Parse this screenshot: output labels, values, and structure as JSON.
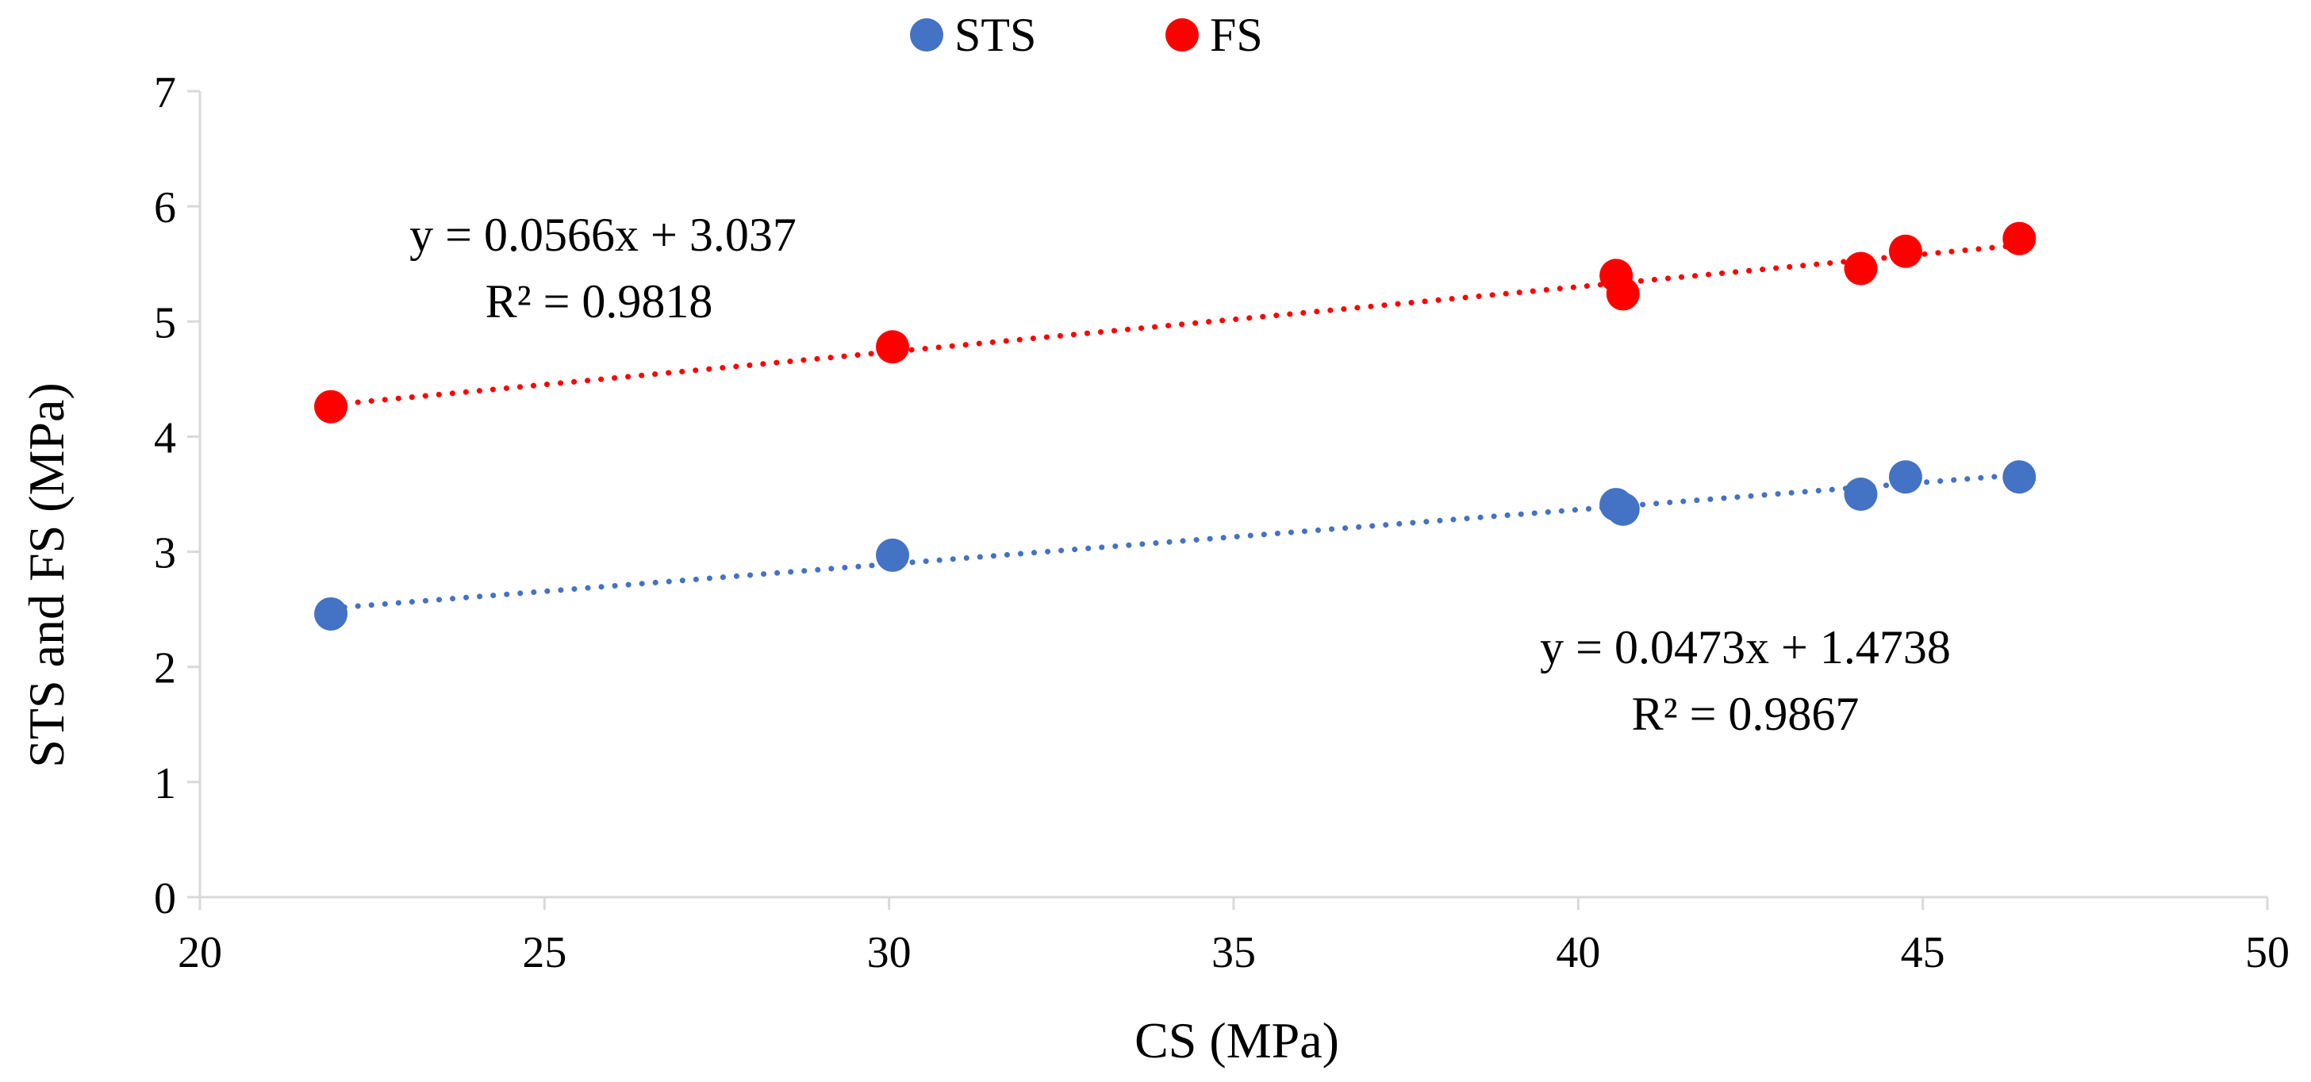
{
  "chart_data": {
    "type": "scatter",
    "xlabel": "CS (MPa)",
    "ylabel": "STS and FS (MPa)",
    "xlim": [
      20,
      50
    ],
    "ylim": [
      0,
      7
    ],
    "x_ticks": [
      "20",
      "25",
      "30",
      "35",
      "40",
      "45",
      "50"
    ],
    "y_ticks": [
      "0",
      "1",
      "2",
      "3",
      "4",
      "5",
      "6",
      "7"
    ],
    "grid": false,
    "legend_position": "top-center",
    "series": [
      {
        "name": "STS",
        "color": "#4472C4",
        "points": [
          {
            "x": 21.9,
            "y": 2.46
          },
          {
            "x": 30.05,
            "y": 2.97
          },
          {
            "x": 40.55,
            "y": 3.41
          },
          {
            "x": 40.65,
            "y": 3.37
          },
          {
            "x": 44.1,
            "y": 3.5
          },
          {
            "x": 44.75,
            "y": 3.65
          },
          {
            "x": 46.4,
            "y": 3.65
          }
        ],
        "trendline": {
          "slope": 0.0473,
          "intercept": 1.4738,
          "x_range": [
            21.9,
            46.4
          ]
        },
        "equation": "y = 0.0473x + 1.4738",
        "r_squared": "R² = 0.9867"
      },
      {
        "name": "FS",
        "color": "#FF0000",
        "points": [
          {
            "x": 21.9,
            "y": 4.26
          },
          {
            "x": 30.05,
            "y": 4.78
          },
          {
            "x": 40.55,
            "y": 5.4
          },
          {
            "x": 40.65,
            "y": 5.24
          },
          {
            "x": 44.1,
            "y": 5.46
          },
          {
            "x": 44.75,
            "y": 5.61
          },
          {
            "x": 46.4,
            "y": 5.72
          }
        ],
        "trendline": {
          "slope": 0.0566,
          "intercept": 3.037,
          "x_range": [
            21.9,
            46.4
          ]
        },
        "equation": "y = 0.0566x + 3.037",
        "r_squared": "R² = 0.9818"
      }
    ]
  }
}
